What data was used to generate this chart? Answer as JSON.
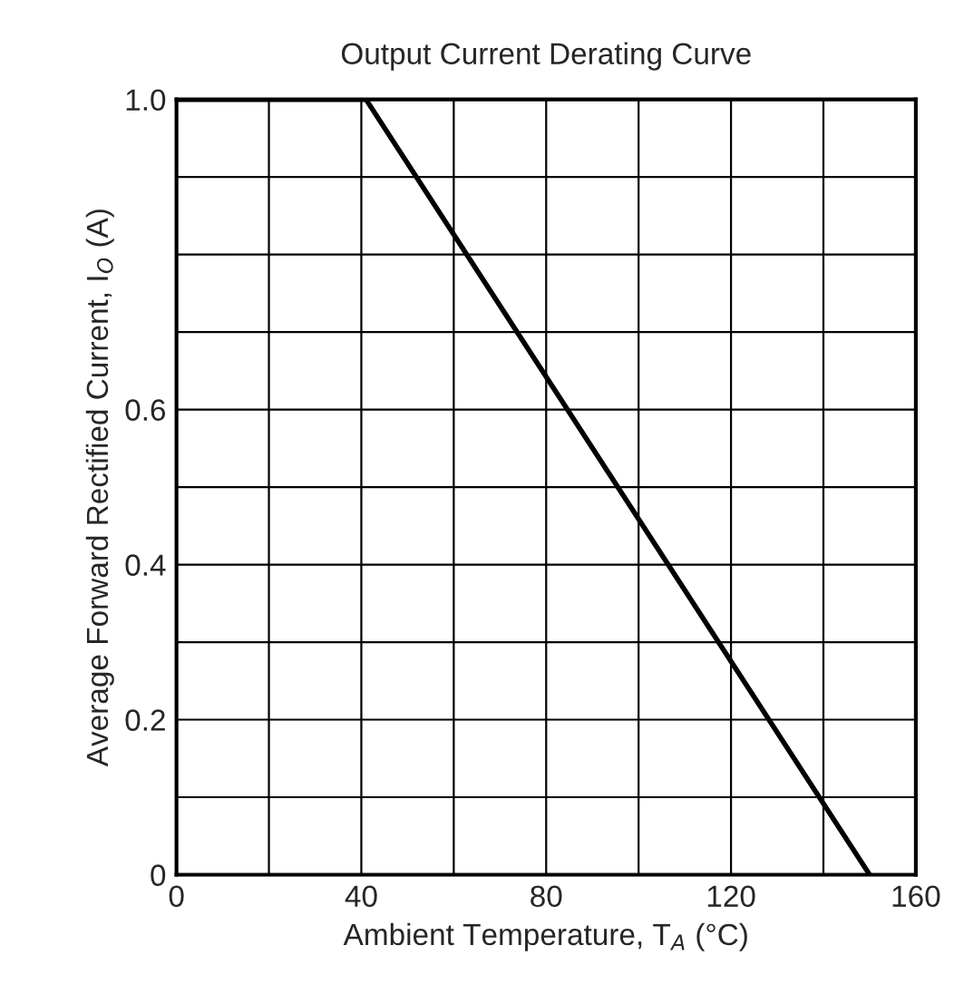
{
  "chart_data": {
    "type": "line",
    "title": "Output Current Derating Curve",
    "xlabel": "Ambient Temperature, T$_{A}$ (°C)",
    "ylabel": "Average Forward Rectified Current, I$_{O}$ (A)",
    "x": [
      0,
      41,
      150
    ],
    "series": [
      {
        "color": "#000000",
        "values": [
          1.0,
          1.0,
          0
        ]
      }
    ],
    "xlim": [
      0,
      160
    ],
    "ylim": [
      0,
      1.0
    ],
    "xticks": [
      0,
      {
        "value": 20,
        "label": null
      },
      40,
      {
        "value": 60,
        "label": null
      },
      80,
      {
        "value": 100,
        "label": null
      },
      120,
      {
        "value": 140,
        "label": null
      },
      160
    ],
    "yticks": [
      0,
      {
        "value": 0.1,
        "label": null
      },
      0.2,
      {
        "value": 0.3,
        "label": null
      },
      0.4,
      {
        "value": 0.5,
        "label": null
      },
      0.6,
      {
        "value": 0.7,
        "label": null
      },
      {
        "value": 0.8,
        "label": null
      },
      {
        "value": 0.9,
        "label": null
      },
      {
        "value": 1.0,
        "label": "1.0"
      }
    ],
    "grid": true,
    "marker": "none",
    "line_style": "solid"
  }
}
